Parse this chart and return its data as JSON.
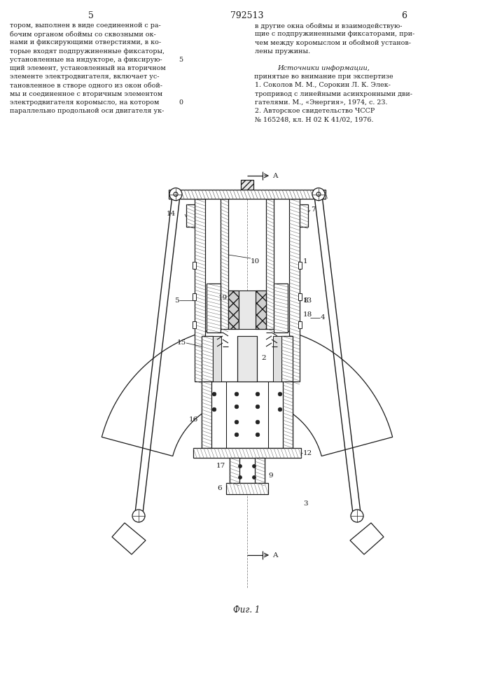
{
  "lc": "#1a1a1a",
  "page_left": "5",
  "page_center": "792513",
  "page_right": "6",
  "fig_caption": "Фиг. 1",
  "left_col": [
    "тором, выполнен в виде соединенной с ра-",
    "бочим органом обоймы со сквозными ок-",
    "нами и фиксирующими отверстиями, в ко-",
    "торые входят подпружиненные фиксаторы,",
    "установленные на индукторе, а фиксирую-",
    "щий элемент, установленный на вторичном",
    "элементе электродвигателя, включает ус-",
    "тановленное в створе одного из окон обой-",
    "мы и соединенное с вторичным элементом",
    "электродвигателя коромысло, на котором",
    "параллельно продольной оси двигателя ук-"
  ],
  "right_col_1": [
    "в другие окна обоймы и взаимодействую-",
    "щие с подпружиненными фиксаторами, при-",
    "чем между коромыслом и обоймой установ-",
    "лены пружины."
  ],
  "sources_head1": "Источники информации,",
  "sources_head2": "принятые во внимание при экспертизе",
  "right_col_2": [
    "1. Соколов М. М., Сорокин Л. К. Элек-",
    "тропривод с линейными асинхронными дви-",
    "гателями. М., «Энергия», 1974, с. 23.",
    "2. Авторское свидетельство ЧССР",
    "№ 165248, кл. Н 02 К 41/02, 1976."
  ]
}
